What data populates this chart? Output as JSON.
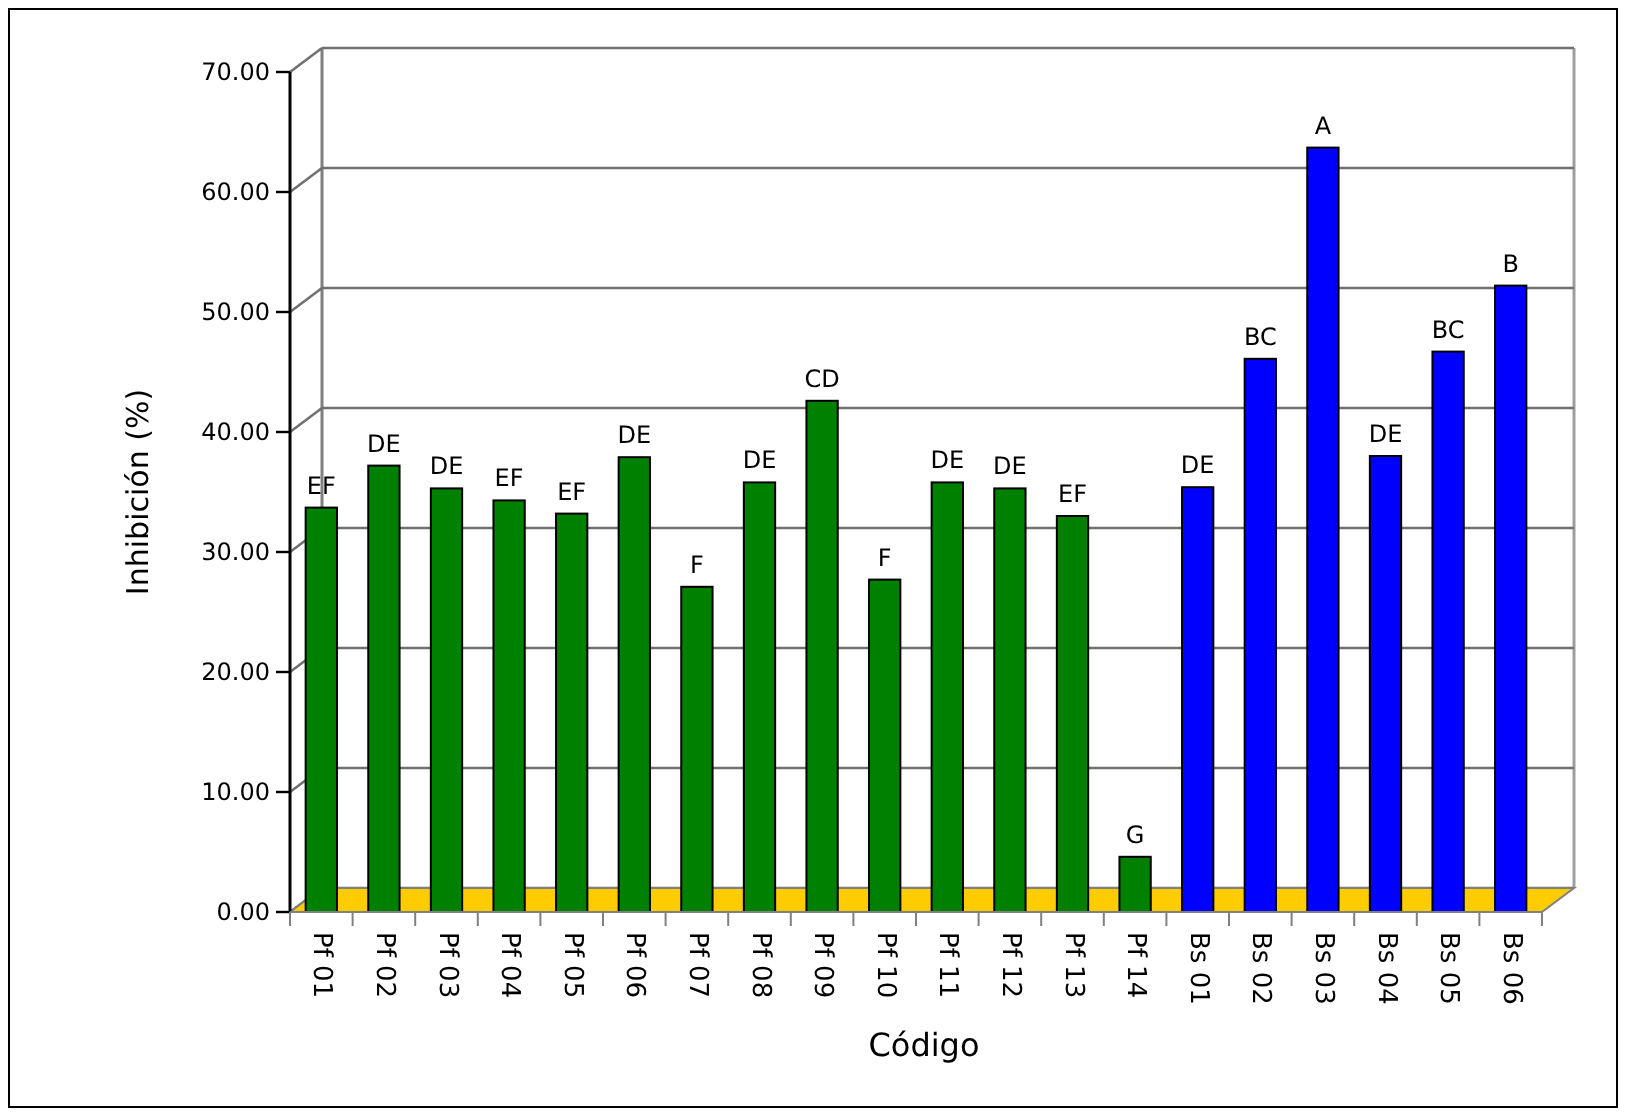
{
  "chart_data": {
    "type": "bar",
    "xlabel": "Código",
    "ylabel": "Inhibición (%)",
    "categories": [
      "Pf 01",
      "Pf 02",
      "Pf 03",
      "Pf 04",
      "Pf 05",
      "Pf 06",
      "Pf 07",
      "Pf 08",
      "Pf 09",
      "Pf 10",
      "Pf 11",
      "Pf 12",
      "Pf 13",
      "Pf 14",
      "Bs 01",
      "Bs 02",
      "Bs 03",
      "Bs 04",
      "Bs 05",
      "Bs 06"
    ],
    "values": [
      33.7,
      37.2,
      35.3,
      34.3,
      33.2,
      37.9,
      27.1,
      35.8,
      42.6,
      27.7,
      35.8,
      35.3,
      33.0,
      4.6,
      35.4,
      46.1,
      63.7,
      38.0,
      46.7,
      52.2
    ],
    "colors": [
      "#008000",
      "#008000",
      "#008000",
      "#008000",
      "#008000",
      "#008000",
      "#008000",
      "#008000",
      "#008000",
      "#008000",
      "#008000",
      "#008000",
      "#008000",
      "#008000",
      "#0000ff",
      "#0000ff",
      "#0000ff",
      "#0000ff",
      "#0000ff",
      "#0000ff"
    ],
    "value_labels": [
      "EF",
      "DE",
      "DE",
      "EF",
      "EF",
      "DE",
      "F",
      "DE",
      "CD",
      "F",
      "DE",
      "DE",
      "EF",
      "G",
      "DE",
      "BC",
      "A",
      "DE",
      "BC",
      "B"
    ],
    "ylim": [
      0,
      70
    ],
    "yticks": [
      {
        "value": 0,
        "label": "0.00"
      },
      {
        "value": 10,
        "label": "10.00"
      },
      {
        "value": 20,
        "label": "20.00"
      },
      {
        "value": 30,
        "label": "30.00"
      },
      {
        "value": 40,
        "label": "40.00"
      },
      {
        "value": 50,
        "label": "50.00"
      },
      {
        "value": 60,
        "label": "60.00"
      },
      {
        "value": 70,
        "label": "70.00"
      }
    ],
    "grid": "y"
  }
}
